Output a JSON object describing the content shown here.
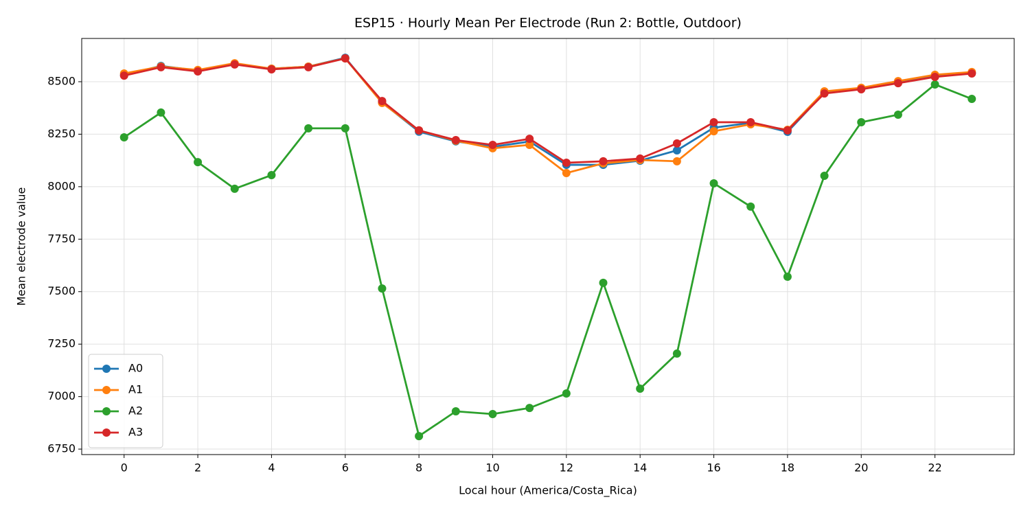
{
  "chart_data": {
    "type": "line",
    "title": "ESP15 · Hourly Mean Per Electrode (Run 2: Bottle, Outdoor)",
    "x_label": "Local hour (America/Costa_Rica)",
    "y_label": "Mean electrode value",
    "x": [
      0,
      1,
      2,
      3,
      4,
      5,
      6,
      7,
      8,
      9,
      10,
      11,
      12,
      13,
      14,
      15,
      16,
      17,
      18,
      19,
      20,
      21,
      22,
      23
    ],
    "series": [
      {
        "name": "A0",
        "color": "#1f77b4",
        "values": [
          8532,
          8575,
          8553,
          8585,
          8562,
          8572,
          8614,
          8401,
          8262,
          8216,
          8190,
          8215,
          8104,
          8104,
          8124,
          8173,
          8281,
          8304,
          8261,
          8448,
          8467,
          8497,
          8528,
          8542
        ]
      },
      {
        "name": "A1",
        "color": "#ff7f0e",
        "values": [
          8539,
          8572,
          8556,
          8588,
          8562,
          8572,
          8611,
          8399,
          8268,
          8219,
          8183,
          8199,
          8065,
          8111,
          8127,
          8121,
          8264,
          8297,
          8271,
          8454,
          8471,
          8503,
          8533,
          8546
        ]
      },
      {
        "name": "A2",
        "color": "#2ca02c",
        "values": [
          8235,
          8353,
          8117,
          7990,
          8055,
          8278,
          8278,
          7515,
          6812,
          6930,
          6917,
          6946,
          7015,
          7542,
          7038,
          7205,
          8016,
          7905,
          7571,
          8052,
          8307,
          8343,
          8487,
          8418
        ]
      },
      {
        "name": "A3",
        "color": "#d62728",
        "values": [
          8529,
          8569,
          8549,
          8582,
          8559,
          8569,
          8611,
          8408,
          8268,
          8222,
          8199,
          8228,
          8114,
          8121,
          8134,
          8206,
          8307,
          8307,
          8268,
          8444,
          8464,
          8493,
          8523,
          8539
        ]
      }
    ],
    "xlim": [
      -1.15,
      24.15
    ],
    "xticks": [
      0,
      2,
      4,
      6,
      8,
      10,
      12,
      14,
      16,
      18,
      20,
      22
    ],
    "ylim": [
      6724,
      8706
    ],
    "yticks": [
      6750,
      7000,
      7250,
      7500,
      7750,
      8000,
      8250,
      8500
    ],
    "grid": true,
    "legend": "lower left"
  }
}
